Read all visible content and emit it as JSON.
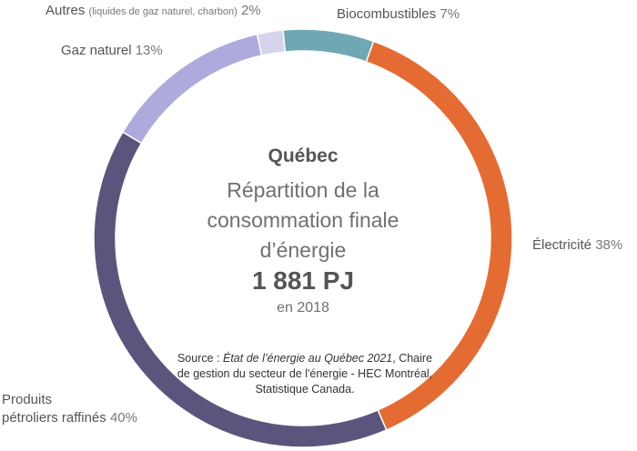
{
  "chart_data": {
    "type": "donut",
    "title": "Québec",
    "subtitle": "Répartition de la consommation finale d’énergie",
    "total": "1 881 PJ",
    "year": "en 2018",
    "slices": [
      {
        "name": "Biocombustibles",
        "value": 7,
        "pct_label": "7%",
        "color": "#6fa8b4"
      },
      {
        "name": "Électricité",
        "value": 38,
        "pct_label": "38%",
        "color": "#e46c32"
      },
      {
        "name": "Produits pétroliers raffinés",
        "value": 40,
        "pct_label": "40%",
        "color": "#5b557d"
      },
      {
        "name": "Gaz naturel",
        "value": 13,
        "pct_label": "13%",
        "color": "#aeaadd"
      },
      {
        "name": "Autres",
        "detail": "(liquides de gaz naturel, charbon)",
        "value": 2,
        "pct_label": "2%",
        "color": "#d6d4ec"
      }
    ],
    "source": {
      "prefix": "Source : ",
      "publication": "État de l’énergie au Québec 2021",
      "rest": ", Chaire de gestion du secteur de l'énergie - HEC Montréal, Statistique Canada."
    }
  },
  "labels": {
    "petrole_line1": "Produits",
    "petrole_line2": "pétroliers raffinés"
  }
}
